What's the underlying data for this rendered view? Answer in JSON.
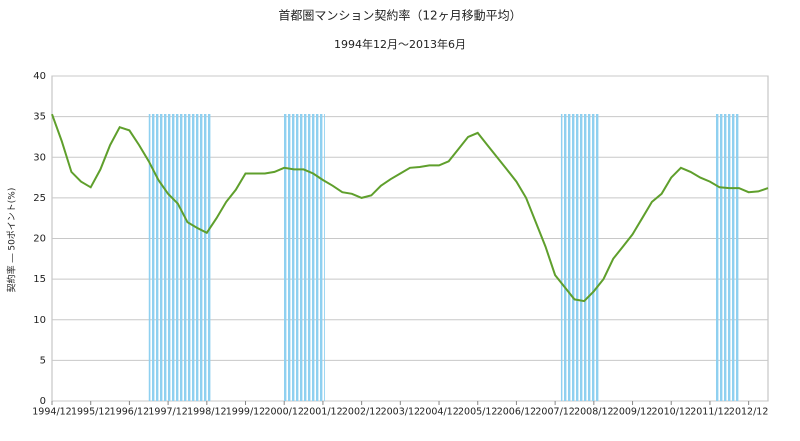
{
  "chart_data": {
    "type": "line",
    "title": "首都圏マンション契約率（12ヶ月移動平均）",
    "subtitle": "1994年12月～2013年6月",
    "y_label": "契約率 ― 50ポイント(%)",
    "categories": [
      "1994/12",
      null,
      null,
      null,
      "1995/12",
      null,
      null,
      null,
      "1996/12",
      null,
      null,
      null,
      "1997/12",
      null,
      null,
      null,
      "1998/12",
      null,
      null,
      null,
      "1999/12",
      null,
      null,
      null,
      "2000/12",
      null,
      null,
      null,
      "2001/12",
      null,
      null,
      null,
      "2002/12",
      null,
      null,
      null,
      "2003/12",
      null,
      null,
      null,
      "2004/12",
      null,
      null,
      null,
      "2005/12",
      null,
      null,
      null,
      "2006/12",
      null,
      null,
      null,
      "2007/12",
      null,
      null,
      null,
      "2008/12",
      null,
      null,
      null,
      "2009/12",
      null,
      null,
      null,
      "2010/12",
      null,
      null,
      null,
      "2011/12",
      null,
      null,
      null,
      "2012/12",
      null,
      null
    ],
    "series": [
      {
        "color": "#5f9f2c",
        "values": [
          35.3,
          32,
          28.2,
          27,
          26.3,
          28.5,
          31.5,
          33.7,
          33.3,
          31.5,
          29.5,
          27.2,
          25.5,
          24.3,
          22,
          21.3,
          20.7,
          22.5,
          24.5,
          26,
          28,
          28,
          28,
          28.2,
          28.7,
          28.5,
          28.5,
          28,
          27.2,
          26.5,
          25.7,
          25.5,
          25,
          25.3,
          26.5,
          27.3,
          28,
          28.7,
          28.8,
          29,
          29,
          29.5,
          31,
          32.5,
          33,
          31.5,
          30,
          28.5,
          27,
          25,
          22,
          19,
          15.5,
          14,
          12.5,
          12.3,
          13.5,
          15,
          17.5,
          19,
          20.5,
          22.5,
          24.5,
          25.5,
          27.5,
          28.7,
          28.2,
          27.5,
          27,
          26.3,
          26.2,
          26.2,
          25.7,
          25.8,
          26.2
        ]
      }
    ],
    "shaded_ranges": [
      [
        10,
        16.4
      ],
      [
        23.9,
        28.2
      ],
      [
        52.6,
        56.6
      ],
      [
        68.6,
        71
      ]
    ],
    "shade_color": "#8fd0f0",
    "ylim": [
      0,
      40
    ],
    "yticks": [
      0,
      5,
      10,
      15,
      20,
      25,
      30,
      35,
      40
    ],
    "grid": true
  }
}
